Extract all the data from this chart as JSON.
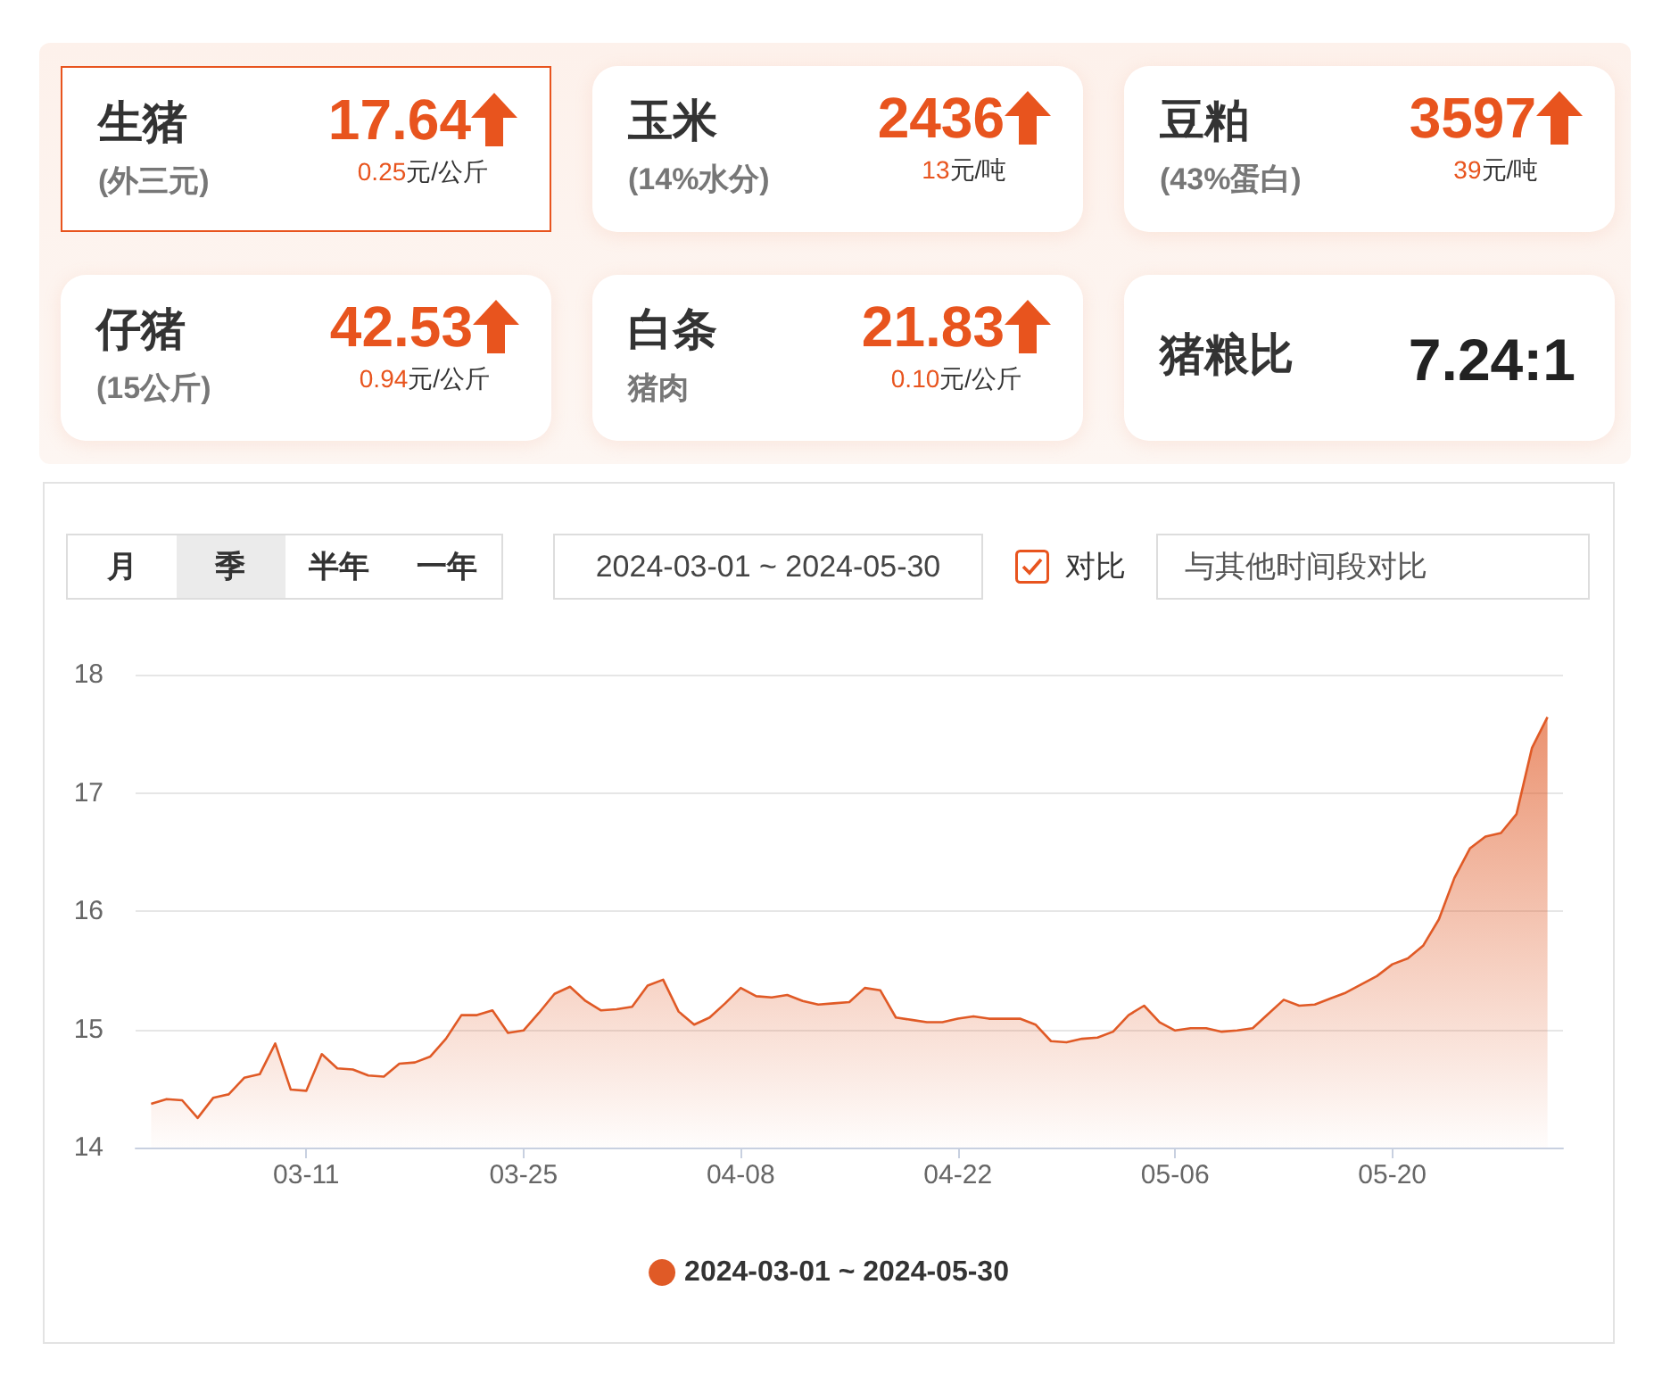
{
  "chart_data": [
    {
      "type": "other",
      "title": "生猪",
      "subtitle": "(外三元)",
      "annotations": [
        "17.64",
        "0.25元/公斤"
      ]
    },
    {
      "type": "other",
      "title": "玉米",
      "subtitle": "(14%水分)",
      "annotations": [
        "2436",
        "13元/吨"
      ]
    },
    {
      "type": "other",
      "title": "豆粕",
      "subtitle": "(43%蛋白)",
      "annotations": [
        "3597",
        "39元/吨"
      ]
    },
    {
      "type": "other",
      "title": "仔猪",
      "subtitle": "(15公斤)",
      "annotations": [
        "42.53",
        "0.94元/公斤"
      ]
    },
    {
      "type": "other",
      "title": "白条",
      "subtitle": "猪肉",
      "annotations": [
        "21.83",
        "0.10元/公斤"
      ]
    },
    {
      "type": "other",
      "title": "猪粮比",
      "annotations": [
        "7.24:1"
      ]
    },
    {
      "type": "other",
      "annotations": [
        "月",
        "季",
        "半年",
        "一年",
        "2024-03-01 ~ 2024-05-30",
        "对比",
        "与其他时间段对比"
      ]
    },
    {
      "type": "area",
      "x": [
        "--03-01",
        "--03-02",
        "--03-03",
        "--03-04",
        "--03-05",
        "--03-06",
        "--03-07",
        "--03-08",
        "--03-09",
        "--03-10",
        "--03-11",
        "--03-12",
        "--03-13",
        "--03-14",
        "--03-15",
        "--03-16",
        "--03-17",
        "--03-18",
        "--03-19",
        "--03-20",
        "--03-21",
        "--03-22",
        "--03-23",
        "--03-24",
        "--03-25",
        "--03-26",
        "--03-27",
        "--03-28",
        "--03-29",
        "--03-30",
        "--03-31",
        "--04-01",
        "--04-02",
        "--04-03",
        "--04-04",
        "--04-05",
        "--04-06",
        "--04-07",
        "--04-08",
        "--04-09",
        "--04-10",
        "--04-11",
        "--04-12",
        "--04-13",
        "--04-14",
        "--04-15",
        "--04-16",
        "--04-17",
        "--04-18",
        "--04-19",
        "--04-20",
        "--04-21",
        "--04-22",
        "--04-23",
        "--04-24",
        "--04-25",
        "--04-26",
        "--04-27",
        "--04-28",
        "--04-29",
        "--04-30",
        "--05-01",
        "--05-02",
        "--05-03",
        "--05-04",
        "--05-05",
        "--05-06",
        "--05-07",
        "--05-08",
        "--05-09",
        "--05-10",
        "--05-11",
        "--05-12",
        "--05-13",
        "--05-14",
        "--05-15",
        "--05-16",
        "--05-17",
        "--05-18",
        "--05-19",
        "--05-20",
        "--05-21",
        "--05-22",
        "--05-23",
        "--05-24",
        "--05-25",
        "--05-26",
        "--05-27",
        "--05-28",
        "--05-29",
        "--05-30"
      ],
      "series": [
        {
          "name": "2024-03-01 ~ 2024-05-30",
          "color": "#e05a26",
          "values": [
            14.37,
            14.41,
            14.4,
            14.25,
            14.42,
            14.45,
            14.59,
            14.62,
            14.88,
            14.49,
            14.48,
            14.79,
            14.67,
            14.66,
            14.61,
            14.6,
            14.71,
            14.72,
            14.77,
            14.92,
            15.12,
            15.12,
            15.16,
            14.97,
            14.99,
            15.14,
            15.3,
            15.36,
            15.24,
            15.16,
            15.17,
            15.19,
            15.37,
            15.42,
            15.15,
            15.04,
            15.1,
            15.22,
            15.35,
            15.28,
            15.27,
            15.29,
            15.24,
            15.21,
            15.22,
            15.23,
            15.35,
            15.33,
            15.1,
            15.08,
            15.06,
            15.06,
            15.09,
            15.11,
            15.09,
            15.09,
            15.09,
            15.04,
            14.9,
            14.89,
            14.92,
            14.93,
            14.98,
            15.12,
            15.2,
            15.06,
            14.99,
            15.01,
            15.01,
            14.98,
            14.99,
            15.01,
            15.13,
            15.25,
            15.2,
            15.21,
            15.26,
            15.31,
            15.38,
            15.45,
            15.55,
            15.6,
            15.71,
            15.93,
            16.28,
            16.53,
            16.63,
            16.66,
            16.82,
            17.38,
            17.64
          ]
        }
      ],
      "xlim": [
        "--02-29",
        "--05-31"
      ],
      "xticks": [
        {
          "value": "--03-11",
          "label": "03-11"
        },
        {
          "value": "--03-25",
          "label": "03-25"
        },
        {
          "value": "--04-08",
          "label": "04-08"
        },
        {
          "value": "--04-22",
          "label": "04-22"
        },
        {
          "value": "--05-06",
          "label": "05-06"
        },
        {
          "value": "--05-20",
          "label": "05-20"
        }
      ],
      "ylim": [
        14,
        18
      ],
      "yticks": [
        14,
        15,
        16,
        17,
        18
      ],
      "grid": "y",
      "legend": "bottom",
      "marker": "none"
    }
  ]
}
